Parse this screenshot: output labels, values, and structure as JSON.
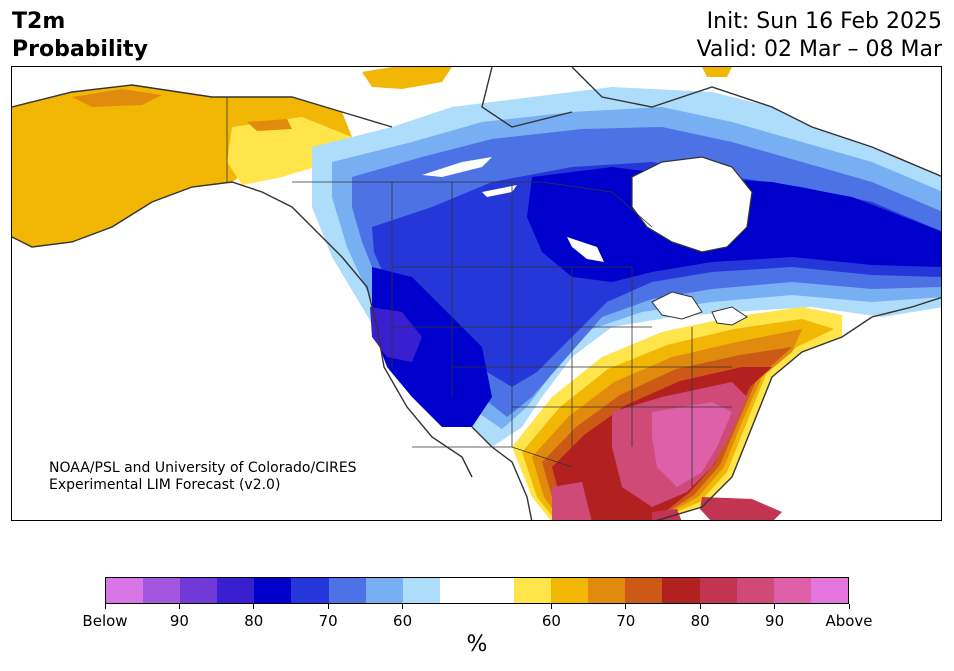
{
  "title": {
    "line1": "T2m",
    "line2": "Probability"
  },
  "dates": {
    "init": "Init: Sun 16 Feb 2025",
    "valid": "Valid: 02 Mar – 08 Mar"
  },
  "credit": {
    "line1": "NOAA/PSL and University of Colorado/CIRES",
    "line2": "Experimental LIM Forecast (v2.0)"
  },
  "legend": {
    "unit_label": "%",
    "colors": [
      "#d876e8",
      "#a257de",
      "#7039d8",
      "#3a1fd0",
      "#0000cc",
      "#2537d9",
      "#4d72e6",
      "#78aef2",
      "#aedcfb",
      "#ffffff",
      "#ffffff",
      "#ffe44a",
      "#f2b705",
      "#e08a0e",
      "#cc5a16",
      "#b32020",
      "#c23552",
      "#d04a78",
      "#dd60a8",
      "#e676df"
    ],
    "ticks": [
      {
        "label": "Below",
        "pos": 0
      },
      {
        "label": "90",
        "pos": 2
      },
      {
        "label": "80",
        "pos": 4
      },
      {
        "label": "70",
        "pos": 6
      },
      {
        "label": "60",
        "pos": 8
      },
      {
        "label": "60",
        "pos": 12
      },
      {
        "label": "70",
        "pos": 14
      },
      {
        "label": "80",
        "pos": 16
      },
      {
        "label": "90",
        "pos": 18
      },
      {
        "label": "Above",
        "pos": 20
      }
    ]
  }
}
